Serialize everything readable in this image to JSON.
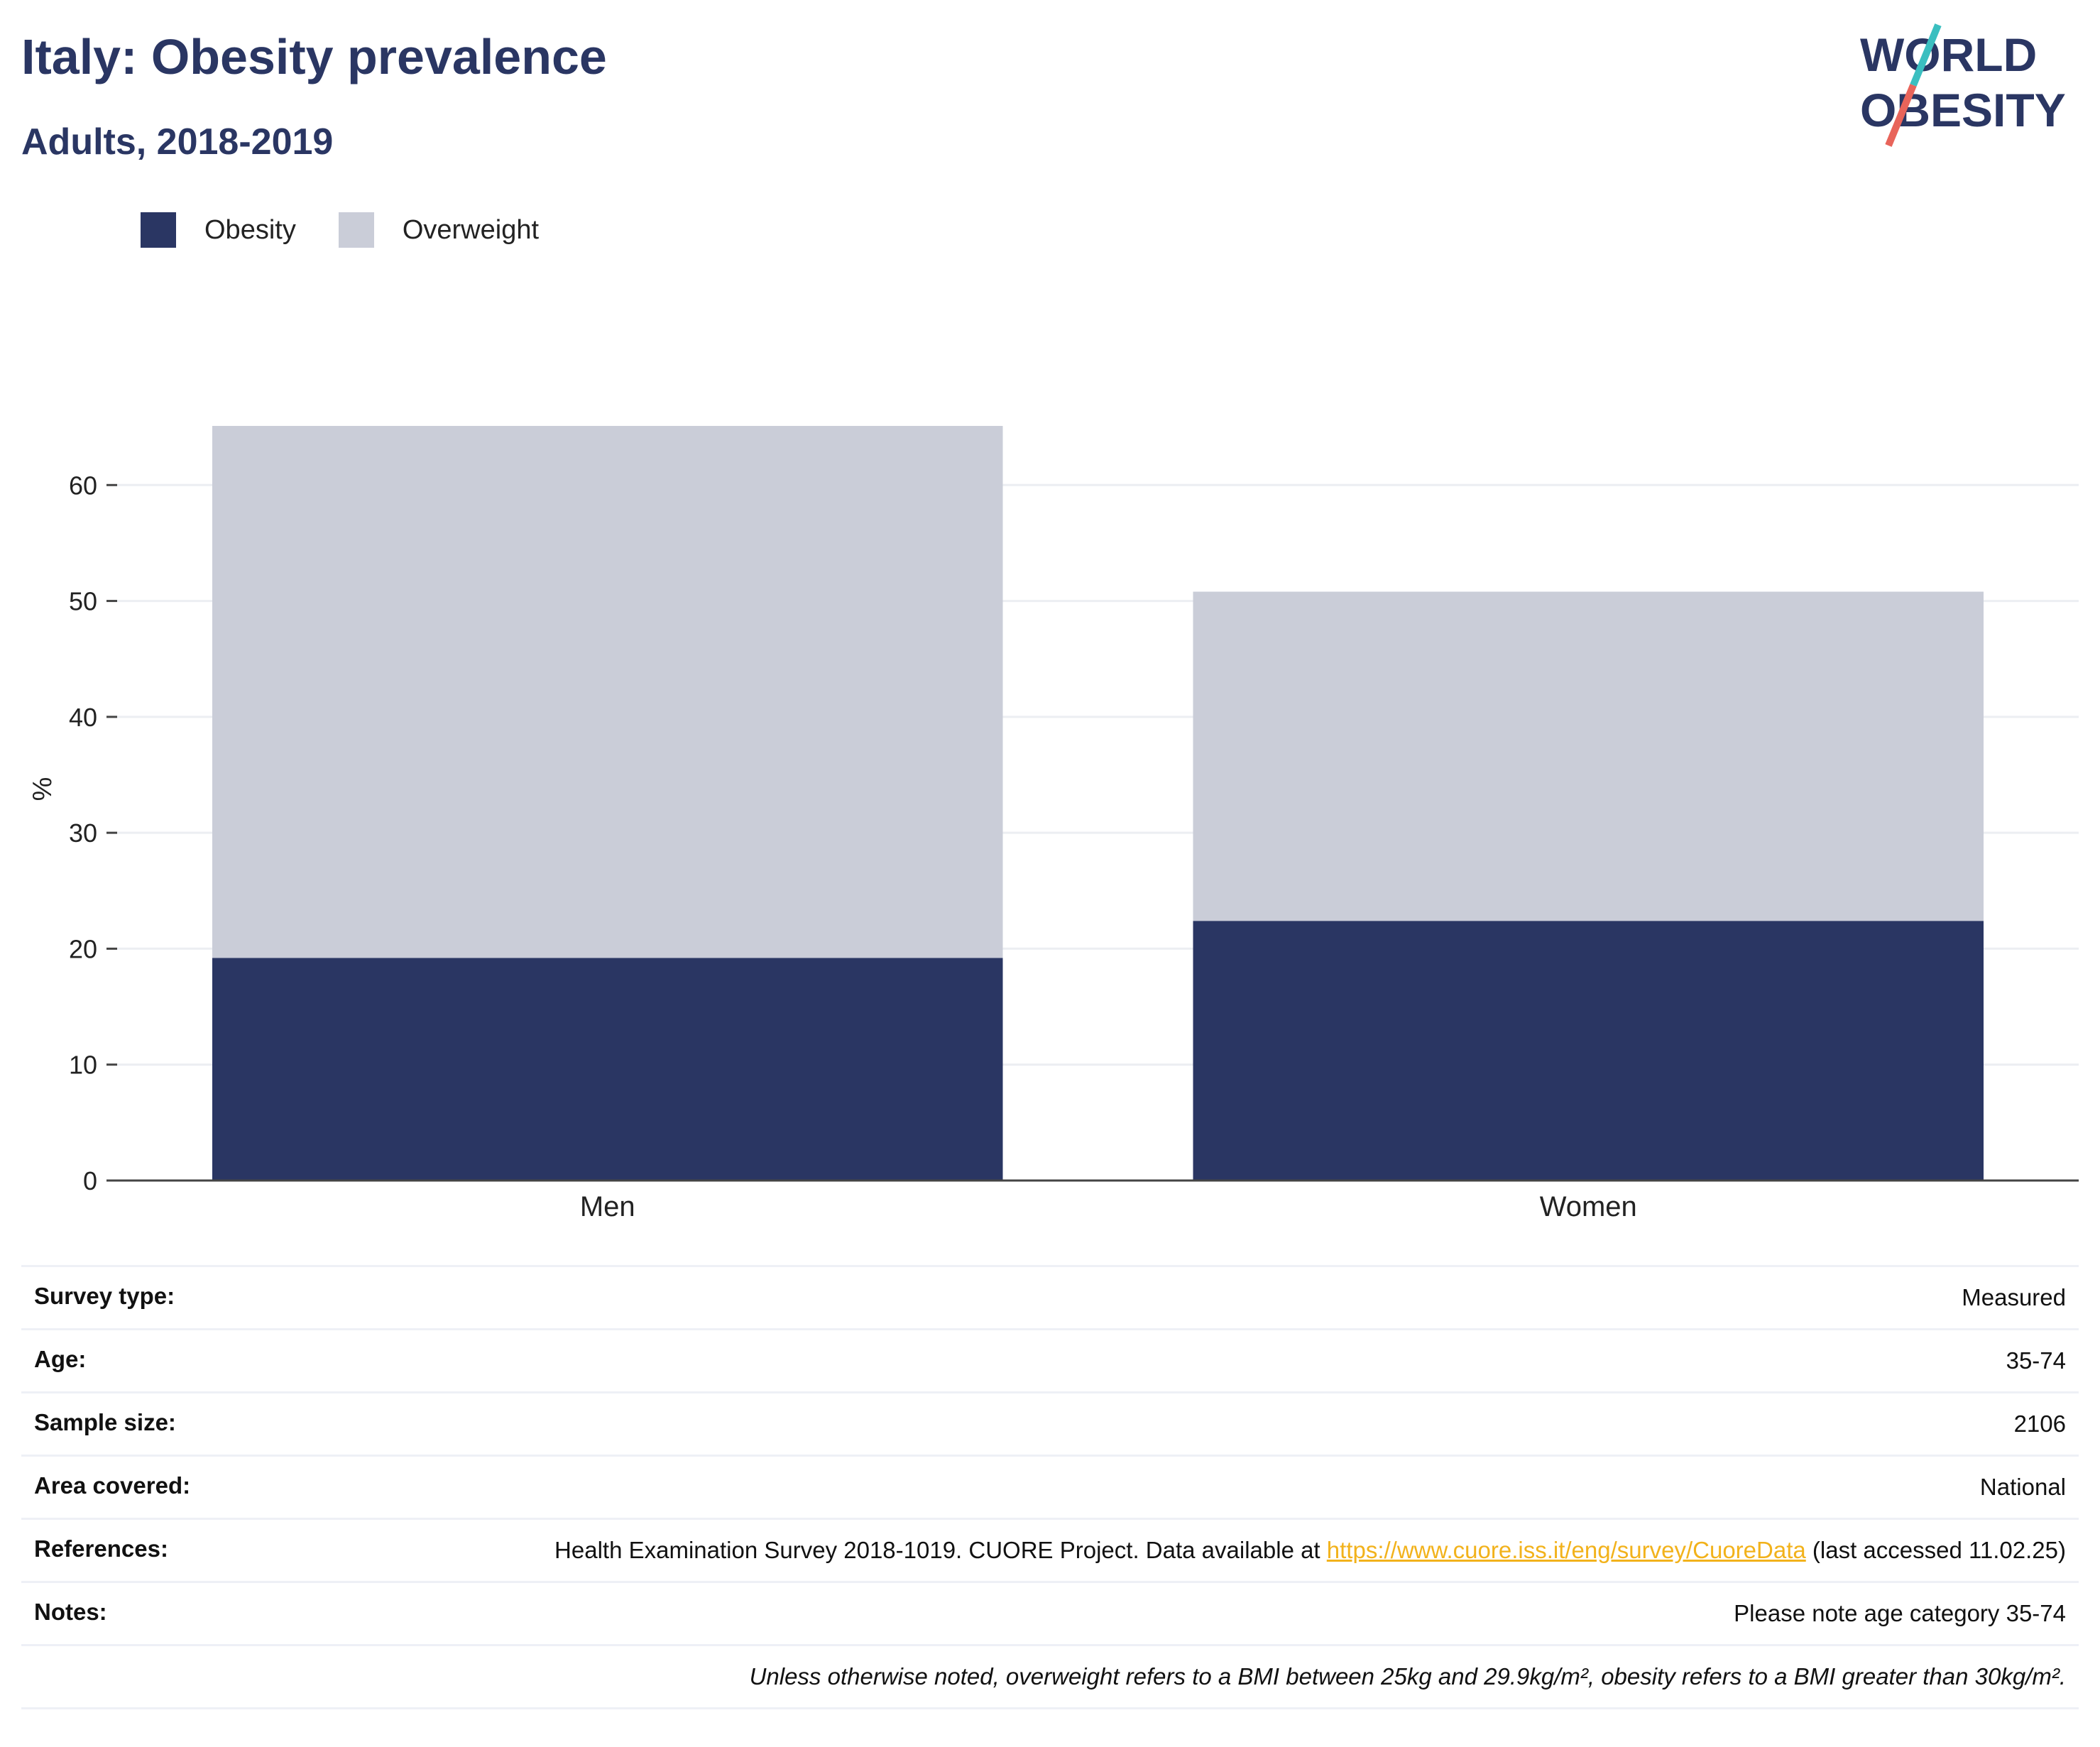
{
  "title": "Italy: Obesity prevalence",
  "subtitle": "Adults, 2018-2019",
  "logo": {
    "line1": "WORLD",
    "line2": "OBESITY"
  },
  "colors": {
    "obesity": "#2a3663",
    "overweight": "#cacdd8",
    "accent_teal": "#3bbfc0",
    "accent_red": "#e8645a",
    "link": "#f2b21b"
  },
  "chart_data": {
    "type": "bar",
    "stacked": true,
    "categories": [
      "Men",
      "Women"
    ],
    "series": [
      {
        "name": "Obesity",
        "values": [
          19.2,
          22.4
        ]
      },
      {
        "name": "Overweight",
        "values": [
          45.9,
          28.4
        ]
      }
    ],
    "ylabel": "%",
    "ylim": [
      0,
      70
    ],
    "yticks": [
      0,
      10,
      20,
      30,
      40,
      50,
      60
    ],
    "grid": true,
    "legend_position": "top-left"
  },
  "info": {
    "survey_type": {
      "label": "Survey type:",
      "value": "Measured"
    },
    "age": {
      "label": "Age:",
      "value": "35-74"
    },
    "sample_size": {
      "label": "Sample size:",
      "value": "2106"
    },
    "area": {
      "label": "Area covered:",
      "value": "National"
    },
    "references": {
      "label": "References:",
      "before": "Health Examination Survey 2018-1019. CUORE Project. Data available at ",
      "link": "https://www.cuore.iss.it/eng/survey/CuoreData",
      "after": " (last accessed 11.02.25)"
    },
    "notes": {
      "label": "Notes:",
      "value": "Please note age category 35-74"
    },
    "definition": "Unless otherwise noted, overweight refers to a BMI between 25kg and 29.9kg/m², obesity refers to a BMI greater than 30kg/m²."
  }
}
